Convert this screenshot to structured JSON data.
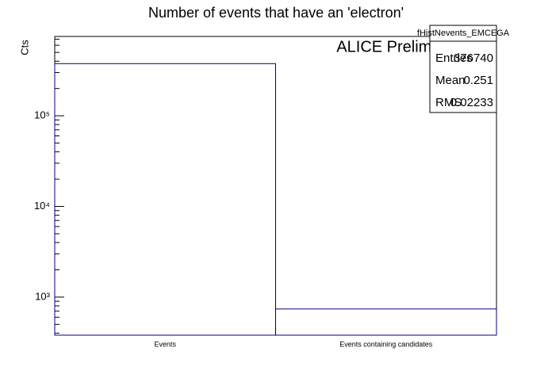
{
  "chart_data": {
    "type": "histogram",
    "title": "Number of events that have an 'electron'",
    "y_label": "Cts",
    "annotation": "ALICE Preliminary",
    "categories": [
      "Events",
      "Events containing candidates"
    ],
    "values": [
      376000,
      740
    ],
    "color": "#00007f",
    "log_y": true,
    "ylim": [
      380,
      750000
    ],
    "yticks": [
      {
        "value": 1000,
        "label": "10³"
      },
      {
        "value": 10000,
        "label": "10⁴"
      },
      {
        "value": 100000,
        "label": "10⁵"
      }
    ],
    "stats": {
      "name": "fHistNevents_EMCEGA",
      "rows": [
        [
          "Entries",
          "376740"
        ],
        [
          "Mean",
          "0.251"
        ],
        [
          "RMS",
          "0.02233"
        ]
      ]
    }
  }
}
